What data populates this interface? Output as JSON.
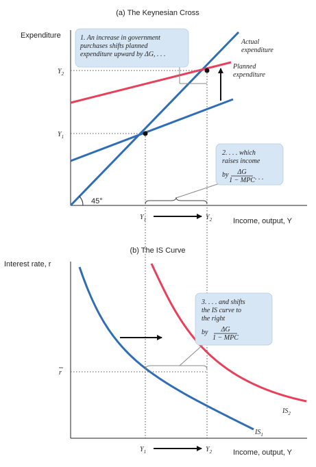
{
  "panel_a": {
    "title": "(a) The Keynesian Cross",
    "y_axis_label": "Expenditure",
    "x_axis_label": "Income, output, Y",
    "tick_y2": "Y",
    "tick_y1": "Y",
    "tick_x1": "Y",
    "tick_x2": "Y",
    "sub_1": "1",
    "sub_2": "2",
    "angle_label": "45°",
    "actual_label_1": "Actual",
    "actual_label_2": "expenditure",
    "planned_label_1": "Planned",
    "planned_label_2": "expenditure",
    "note1_line1": "1. An increase in government",
    "note1_line2": "purchases shifts planned",
    "note1_line3": "expenditure upward by ΔG, . . .",
    "note2_line1": "2. . . . which",
    "note2_line2": "raises income",
    "note2_line3": "by",
    "note2_num": "ΔG",
    "note2_den": "1 − MPC",
    "note2_tail": ". . ."
  },
  "panel_b": {
    "title": "(b) The IS Curve",
    "y_axis_label": "Interest rate, r",
    "x_axis_label": "Income, output, Y",
    "tick_r": "r",
    "tick_x1": "Y",
    "tick_x2": "Y",
    "sub_1": "1",
    "sub_2": "2",
    "is1_label": "IS",
    "is2_label": "IS",
    "note3_line1": "3. . . . and shifts",
    "note3_line2": "the IS curve to",
    "note3_line3": "the right",
    "note3_line4": "by",
    "note3_num": "ΔG",
    "note3_den": "1 − MPC"
  },
  "colors": {
    "blue": "#2f6db5",
    "red": "#e8405a",
    "note_fill": "#d6e6f5"
  }
}
